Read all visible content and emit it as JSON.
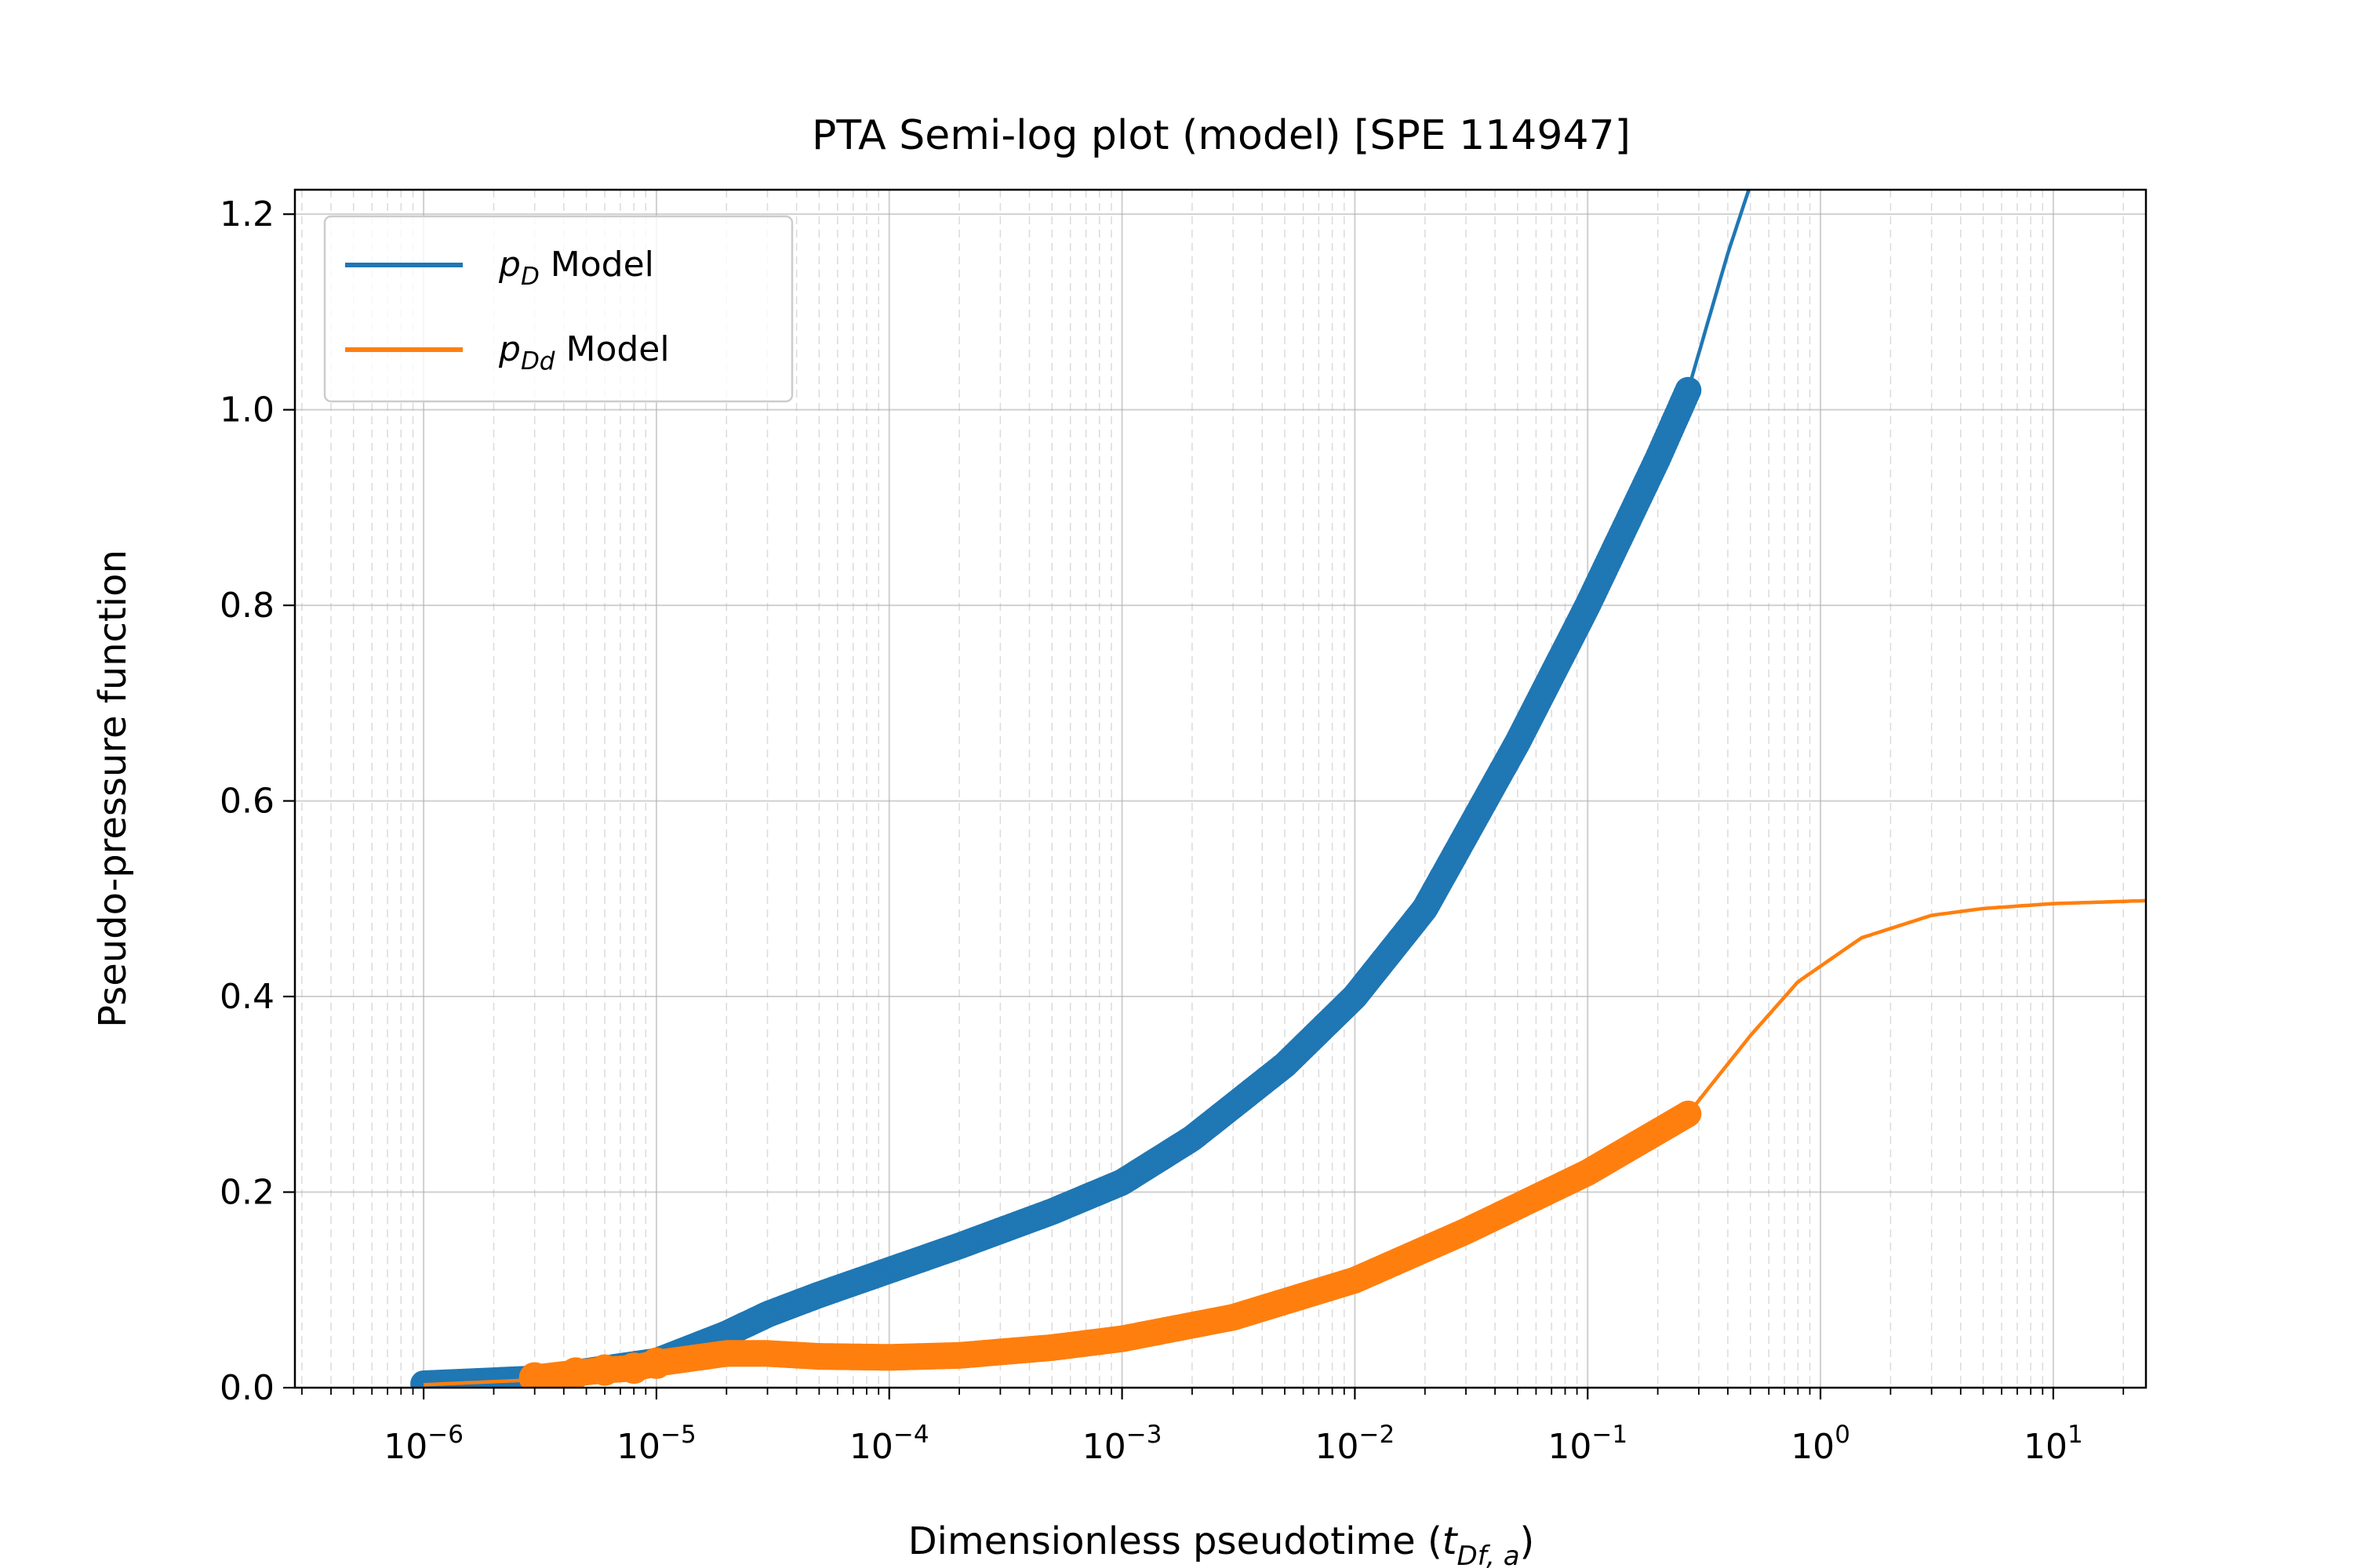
{
  "chart_data": {
    "type": "line",
    "title": "PTA Semi-log plot (model) [SPE 114947]",
    "xlabel": {
      "text": "Dimensionless pseudotime (",
      "var": "t",
      "sub": "Df, a",
      "close": ")"
    },
    "ylabel": "Pseudo-pressure function",
    "xscale": "log",
    "xlim": [
      2.8e-07,
      25
    ],
    "ylim": [
      0,
      1.225
    ],
    "grid": true,
    "legend_placement": "top-left",
    "x_tick_exponents": [
      "−6",
      "−5",
      "−4",
      "−3",
      "−2",
      "−1",
      "0",
      "1"
    ],
    "y_ticks": [
      "0.0",
      "0.2",
      "0.4",
      "0.6",
      "0.8",
      "1.0",
      "1.2"
    ],
    "y_tick_values": [
      0,
      0.2,
      0.4,
      0.6,
      0.8,
      1.0,
      1.2
    ],
    "series": [
      {
        "name": "p_D Model",
        "label_var": "p",
        "label_sub": "D",
        "label_rest": " Model",
        "color": "#1f77b4",
        "model_curve": {
          "x": [
            1e-06,
            3e-06,
            1e-05,
            2e-05,
            3e-05,
            5e-05,
            0.0001,
            0.0002,
            0.0005,
            0.001,
            0.002,
            0.005,
            0.01,
            0.02,
            0.05,
            0.1,
            0.2,
            0.27,
            0.4,
            0.5
          ],
          "y": [
            0.004,
            0.009,
            0.027,
            0.055,
            0.075,
            0.095,
            0.12,
            0.145,
            0.18,
            0.21,
            0.255,
            0.33,
            0.4,
            0.49,
            0.66,
            0.8,
            0.95,
            1.02,
            1.16,
            1.23
          ]
        },
        "measured": {
          "x": [
            1e-06,
            3e-06,
            1e-05,
            2e-05,
            3e-05,
            5e-05,
            0.0001,
            0.0002,
            0.0005,
            0.001,
            0.002,
            0.005,
            0.01,
            0.02,
            0.05,
            0.1,
            0.2,
            0.27
          ],
          "y": [
            0.004,
            0.009,
            0.027,
            0.055,
            0.075,
            0.095,
            0.12,
            0.145,
            0.18,
            0.21,
            0.255,
            0.33,
            0.4,
            0.49,
            0.66,
            0.8,
            0.95,
            1.02
          ]
        }
      },
      {
        "name": "p_Dd Model",
        "label_var": "p",
        "label_sub": "Dd",
        "label_rest": " Model",
        "color": "#ff7f0e",
        "model_curve": {
          "x": [
            1e-06,
            3e-06,
            1e-05,
            2e-05,
            3e-05,
            5e-05,
            0.0001,
            0.0002,
            0.0005,
            0.001,
            0.003,
            0.01,
            0.03,
            0.1,
            0.27,
            0.5,
            0.8,
            1.5,
            3,
            5,
            10,
            25
          ],
          "y": [
            0.003,
            0.008,
            0.025,
            0.035,
            0.035,
            0.032,
            0.031,
            0.033,
            0.041,
            0.05,
            0.072,
            0.11,
            0.16,
            0.22,
            0.28,
            0.36,
            0.415,
            0.46,
            0.483,
            0.49,
            0.495,
            0.498
          ]
        },
        "measured": {
          "x": [
            3e-06,
            4.5e-06,
            6e-06,
            8e-06,
            1e-05,
            2e-05,
            3e-05,
            5e-05,
            0.0001,
            0.0002,
            0.0005,
            0.001,
            0.003,
            0.01,
            0.03,
            0.1,
            0.27
          ],
          "y": [
            0.01,
            0.015,
            0.018,
            0.02,
            0.025,
            0.035,
            0.035,
            0.032,
            0.031,
            0.033,
            0.041,
            0.05,
            0.072,
            0.11,
            0.16,
            0.22,
            0.28
          ]
        }
      }
    ]
  }
}
